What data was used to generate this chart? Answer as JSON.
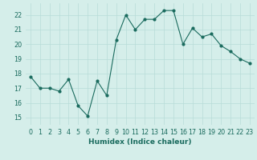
{
  "x": [
    0,
    1,
    2,
    3,
    4,
    5,
    6,
    7,
    8,
    9,
    10,
    11,
    12,
    13,
    14,
    15,
    16,
    17,
    18,
    19,
    20,
    21,
    22,
    23
  ],
  "y": [
    17.8,
    17.0,
    17.0,
    16.8,
    17.6,
    15.8,
    15.1,
    17.5,
    16.5,
    20.3,
    22.0,
    21.0,
    21.7,
    21.7,
    22.3,
    22.3,
    20.0,
    21.1,
    20.5,
    20.7,
    19.9,
    19.5,
    19.0,
    18.7
  ],
  "xlabel": "Humidex (Indice chaleur)",
  "xlim": [
    -0.5,
    23.5
  ],
  "ylim": [
    14.5,
    22.8
  ],
  "yticks": [
    15,
    16,
    17,
    18,
    19,
    20,
    21,
    22
  ],
  "xticks": [
    0,
    1,
    2,
    3,
    4,
    5,
    6,
    7,
    8,
    9,
    10,
    11,
    12,
    13,
    14,
    15,
    16,
    17,
    18,
    19,
    20,
    21,
    22,
    23
  ],
  "line_color": "#1a6b5e",
  "bg_color": "#d5eeea",
  "grid_color": "#b8dcd8",
  "label_fontsize": 6.5,
  "tick_fontsize": 5.8
}
